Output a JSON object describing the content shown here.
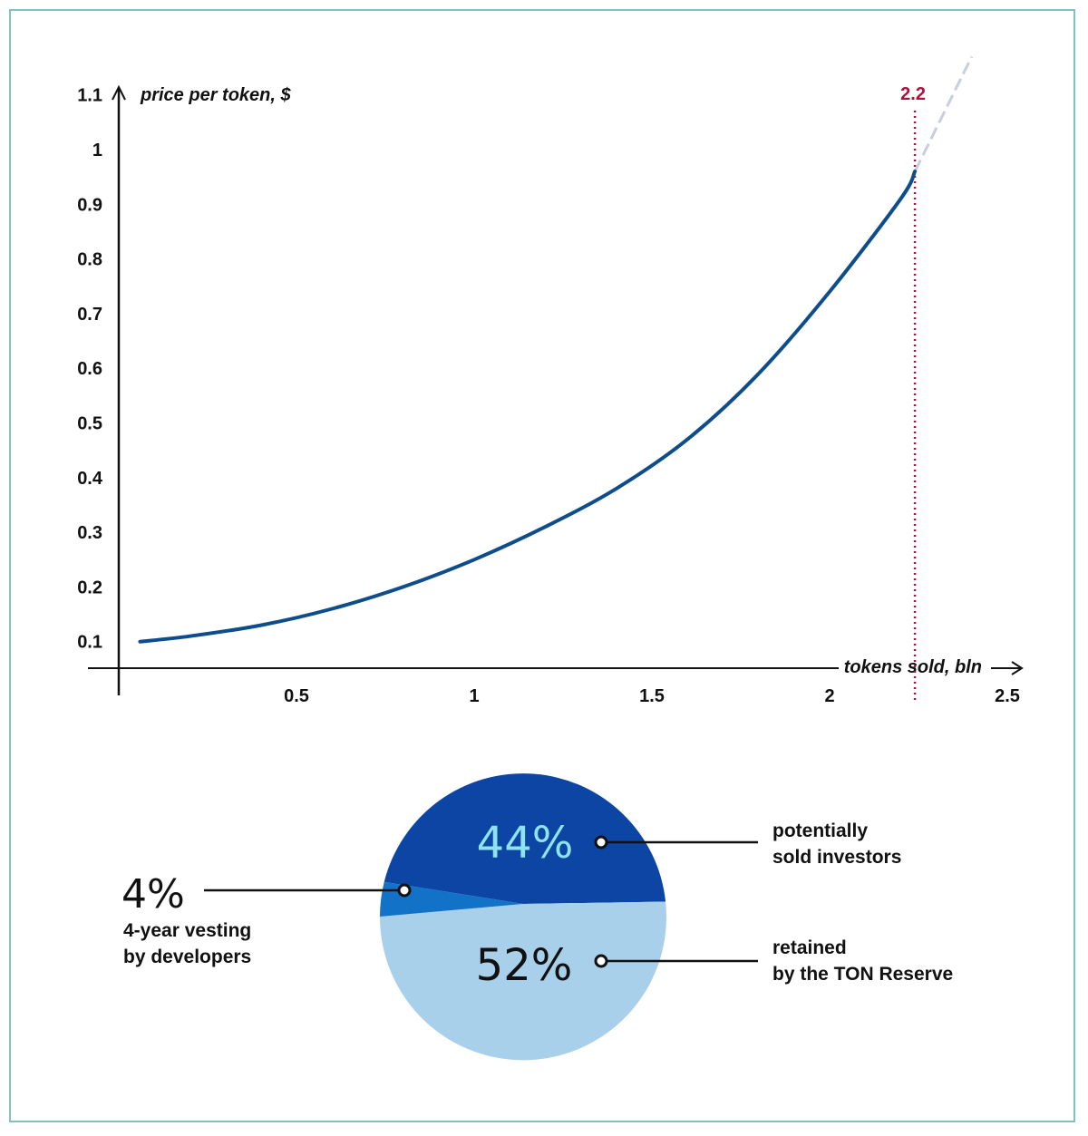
{
  "chart_data": [
    {
      "type": "line",
      "title": "",
      "xlabel": "tokens sold, bln",
      "ylabel": "price per token, $",
      "xlim": [
        0,
        2.5
      ],
      "ylim": [
        0,
        1.1
      ],
      "x_ticks": [
        0.5,
        1,
        1.5,
        2,
        2.5
      ],
      "x_tick_labels": [
        "0.5",
        "1",
        "1.5",
        "2",
        "2.5"
      ],
      "y_ticks": [
        0.1,
        0.2,
        0.3,
        0.4,
        0.5,
        0.6,
        0.7,
        0.8,
        0.9,
        1,
        1.1
      ],
      "y_tick_labels": [
        "0.1",
        "0.2",
        "0.3",
        "0.4",
        "0.5",
        "0.6",
        "0.7",
        "0.8",
        "0.9",
        "1",
        "1.1"
      ],
      "grid": false,
      "legend": "none",
      "series": [
        {
          "color": "#0d4d8c",
          "points": [
            {
              "x": 0.06,
              "y": 0.1
            },
            {
              "x": 0.2,
              "y": 0.11
            },
            {
              "x": 0.4,
              "y": 0.13
            },
            {
              "x": 0.6,
              "y": 0.16
            },
            {
              "x": 0.8,
              "y": 0.2
            },
            {
              "x": 1.0,
              "y": 0.25
            },
            {
              "x": 1.2,
              "y": 0.31
            },
            {
              "x": 1.4,
              "y": 0.38
            },
            {
              "x": 1.6,
              "y": 0.47
            },
            {
              "x": 1.8,
              "y": 0.59
            },
            {
              "x": 2.0,
              "y": 0.74
            },
            {
              "x": 2.2,
              "y": 0.91
            },
            {
              "x": 2.24,
              "y": 0.96
            }
          ]
        }
      ],
      "extension": {
        "color": "#c8cde0",
        "points": [
          {
            "x": 2.24,
            "y": 0.96
          },
          {
            "x": 2.4,
            "y": 1.17
          }
        ]
      },
      "annotation": {
        "x": 2.24,
        "label": "2.2",
        "color": "#b0103a"
      }
    },
    {
      "type": "pie",
      "slices": [
        {
          "label_lines": [
            "potentially",
            "sold investors"
          ],
          "percent_label": "44%",
          "value": 44,
          "color": "#0c45a3",
          "percent_color": "#8de3ee"
        },
        {
          "label_lines": [
            "retained",
            "by the TON Reserve"
          ],
          "percent_label": "52%",
          "value": 52,
          "color": "#a9d0ea",
          "percent_color": "#111111"
        },
        {
          "label_lines": [
            "4-year vesting",
            "by developers"
          ],
          "percent_label": "4%",
          "value": 4,
          "color": "#1272c8",
          "percent_color": "#111111"
        }
      ]
    }
  ]
}
